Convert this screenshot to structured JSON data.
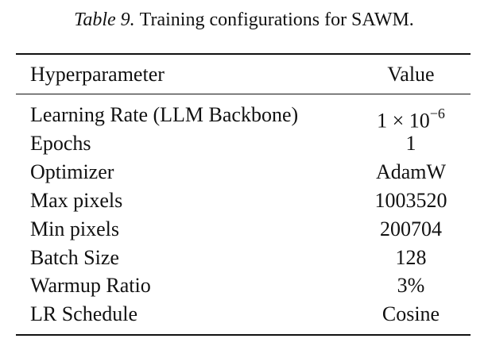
{
  "caption": {
    "label": "Table 9.",
    "text": "Training configurations for SAWM."
  },
  "table": {
    "header": [
      "Hyperparameter",
      "Value"
    ],
    "rows": [
      {
        "name": "Learning Rate (LLM Backbone)",
        "value": "1 × 10",
        "superscript": "−6"
      },
      {
        "name": "Epochs",
        "value": "1"
      },
      {
        "name": "Optimizer",
        "value": "AdamW"
      },
      {
        "name": "Max pixels",
        "value": "1003520"
      },
      {
        "name": "Min pixels",
        "value": "200704"
      },
      {
        "name": "Batch Size",
        "value": "128"
      },
      {
        "name": "Warmup Ratio",
        "value": "3%"
      },
      {
        "name": "LR Schedule",
        "value": "Cosine"
      }
    ]
  }
}
